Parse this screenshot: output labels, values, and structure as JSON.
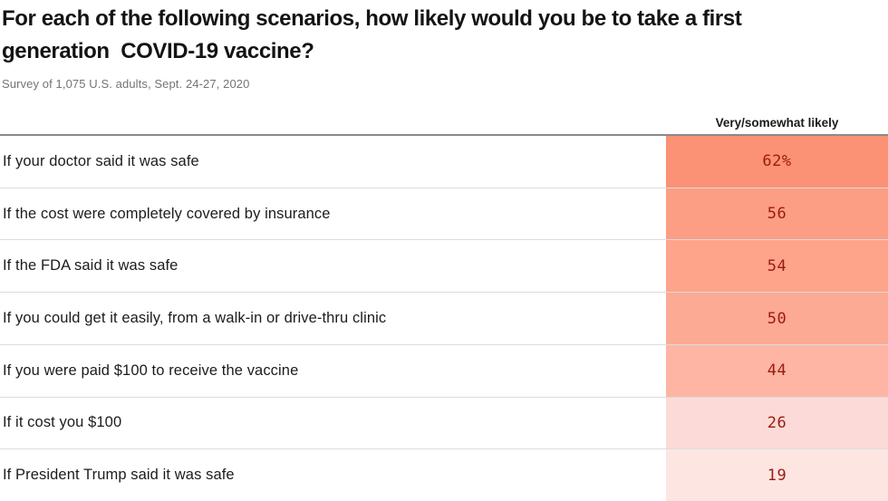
{
  "header": {
    "title_line1": "For each of the following scenarios, how likely would you be to take a first",
    "title_line2": "generation  COVID-19 vaccine?",
    "subtitle": "Survey of 1,075 U.S. adults, Sept. 24-27, 2020"
  },
  "table": {
    "column_header": "Very/somewhat likely",
    "rows": [
      {
        "label": "If your doctor said it was safe",
        "value": "62%",
        "color": "#fb9175"
      },
      {
        "label": "If the cost were completely covered by insurance",
        "value": "56",
        "color": "#fc9e84"
      },
      {
        "label": "If the FDA said it was safe",
        "value": "54",
        "color": "#fda48b"
      },
      {
        "label": "If you could get it easily, from a walk-in or drive-thru clinic",
        "value": "50",
        "color": "#fdaa95"
      },
      {
        "label": "If you were paid $100 to receive the vaccine",
        "value": "44",
        "color": "#feb5a4"
      },
      {
        "label": "If it cost you $100",
        "value": "26",
        "color": "#fcdad7"
      },
      {
        "label": "If President Trump said it was safe",
        "value": "19",
        "color": "#fde5e2"
      }
    ]
  },
  "chart_data": {
    "type": "heatmap",
    "title": "For each of the following scenarios, how likely would you be to take a first generation COVID-19 vaccine?",
    "subtitle": "Survey of 1,075 U.S. adults, Sept. 24-27, 2020",
    "categories": [
      "If your doctor said it was safe",
      "If the cost were completely covered by insurance",
      "If the FDA said it was safe",
      "If you could get it easily, from a walk-in or drive-thru clinic",
      "If you were paid $100 to receive the vaccine",
      "If it cost you $100",
      "If President Trump said it was safe"
    ],
    "series": [
      {
        "name": "Very/somewhat likely",
        "values": [
          62,
          56,
          54,
          50,
          44,
          26,
          19
        ]
      }
    ],
    "value_unit": "%",
    "value_label_format": "percent sign shown on first row only",
    "layout": {
      "orientation": "horizontal rows",
      "value_column": "right",
      "grid": "row dividers only",
      "legend": "none"
    },
    "colors": {
      "cell_scale": [
        "#fb9175",
        "#fc9e84",
        "#fda48b",
        "#fdaa95",
        "#feb5a4",
        "#fcdad7",
        "#fde5e2"
      ],
      "value_text": "#9b1b10",
      "title_text": "#141414",
      "subtitle_text": "#747474",
      "header_rule": "#8a8a8a",
      "row_divider": "#dcdcdc"
    }
  }
}
